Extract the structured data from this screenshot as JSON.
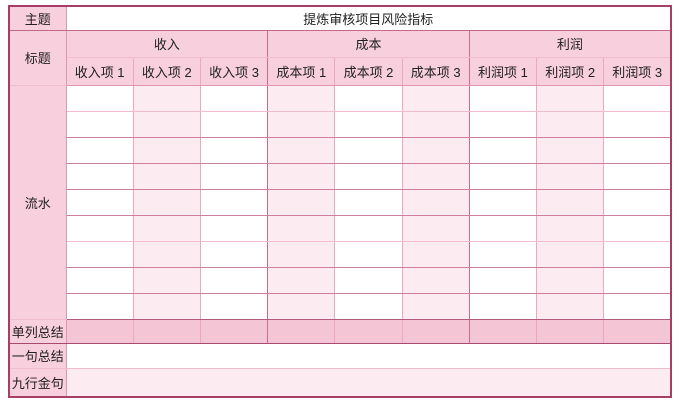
{
  "colors": {
    "outer_border": "#a63e66",
    "header_fill": "#f8cfdc",
    "light_fill": "#fcecf2",
    "summary_fill": "#f4c6d5",
    "grid_line": "#eca7c1",
    "grid_line_dark": "#cc7f9f",
    "text": "#212121"
  },
  "table": {
    "theme_label": "主题",
    "title": "提炼审核项目风险指标",
    "header_label": "标题",
    "group_headers": [
      "收入",
      "成本",
      "利润"
    ],
    "sub_headers": [
      "收入项 1",
      "收入项 2",
      "收入项 3",
      "成本项 1",
      "成本项 2",
      "成本项 3",
      "利润项 1",
      "利润项 2",
      "利润项 3"
    ],
    "flow_label": "流水",
    "flow_row_count": 9,
    "column_summary_label": "单列总结",
    "sentence_summary_label": "一句总结",
    "golden_lines_label": "九行金句",
    "cell_values": []
  }
}
